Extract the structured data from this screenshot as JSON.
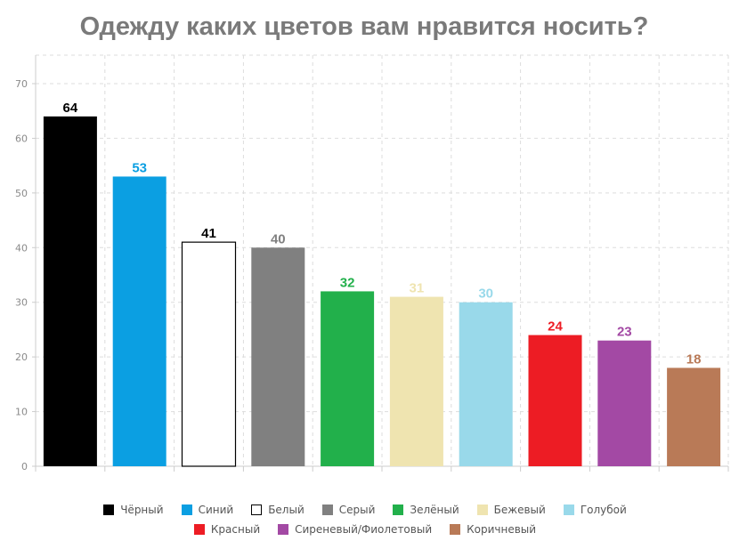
{
  "title": "Одежду каких цветов вам нравится носить?",
  "chart_data": {
    "type": "bar",
    "title": "Одежду каких цветов вам нравится носить?",
    "ylim": [
      0,
      70
    ],
    "y_ticks": [
      0,
      10,
      20,
      30,
      40,
      50,
      60,
      70
    ],
    "grid": true,
    "legend_position": "bottom",
    "categories": [
      "Чёрный",
      "Синий",
      "Белый",
      "Серый",
      "Зелёный",
      "Бежевый",
      "Голубой",
      "Красный",
      "Сиреневый/Фиолетовый",
      "Коричневый"
    ],
    "values": [
      64,
      53,
      41,
      40,
      32,
      31,
      30,
      24,
      23,
      18
    ],
    "colors": [
      "#000000",
      "#0b9fe2",
      "#ffffff",
      "#808080",
      "#22b04b",
      "#efe4b0",
      "#99d9ea",
      "#ed1c24",
      "#a349a4",
      "#b97a57"
    ],
    "label_colors": [
      "#000000",
      "#0b9fe2",
      "#000000",
      "#808080",
      "#22b04b",
      "#efe4b0",
      "#99d9ea",
      "#ed1c24",
      "#a349a4",
      "#b97a57"
    ]
  }
}
